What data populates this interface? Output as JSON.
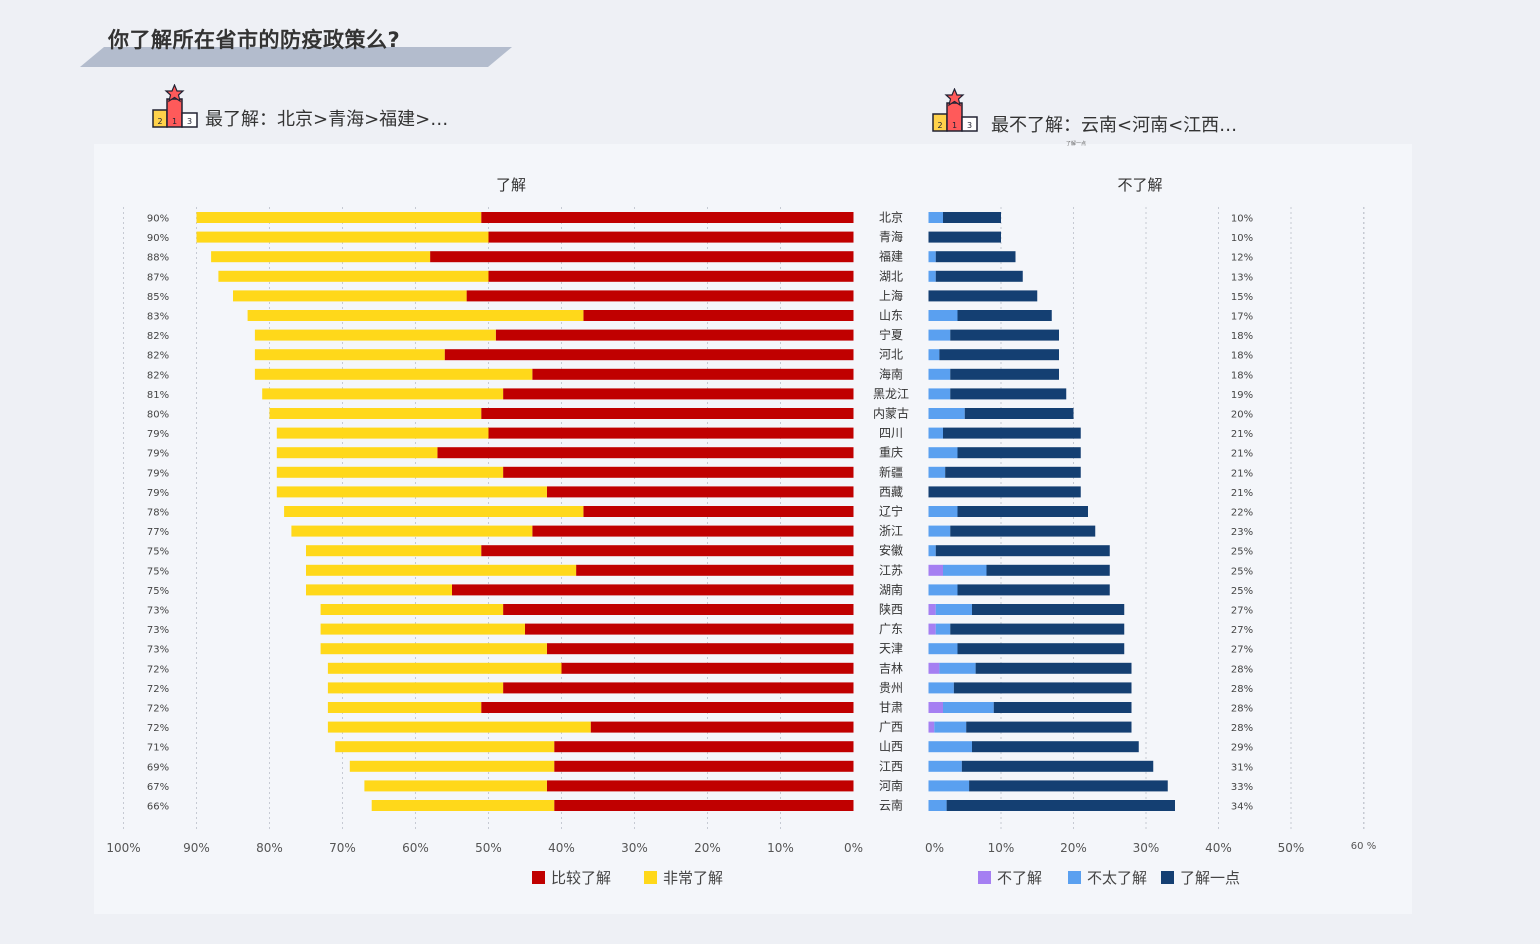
{
  "title": "你了解所在省市的防疫政策么?",
  "rank_left": "最了解：北京>青海>福建>…",
  "rank_right": "最不了解：云南<河南<江西…",
  "tiny_note": "了解一点",
  "podium_labels": [
    "2",
    "1",
    "3"
  ],
  "colors": {
    "bijiao": "#c00000",
    "feichang": "#ffd81a",
    "bu": "#a57ff2",
    "butai": "#5aa0f0",
    "yidian": "#143f72"
  },
  "chart_data": [
    {
      "type": "bar",
      "orientation": "horizontal-reversed",
      "stacked": true,
      "title": "了解",
      "categories": [
        "北京",
        "青海",
        "福建",
        "湖北",
        "上海",
        "山东",
        "宁夏",
        "河北",
        "海南",
        "黑龙江",
        "内蒙古",
        "四川",
        "重庆",
        "新疆",
        "西藏",
        "辽宁",
        "浙江",
        "安徽",
        "江苏",
        "湖南",
        "陕西",
        "广东",
        "天津",
        "吉林",
        "贵州",
        "甘肃",
        "广西",
        "山西",
        "江西",
        "河南",
        "云南"
      ],
      "series": [
        {
          "name": "比较了解",
          "values": [
            51,
            50,
            58,
            50,
            53,
            37,
            49,
            56,
            44,
            48,
            51,
            50,
            57,
            48,
            42,
            37,
            44,
            51,
            38,
            55,
            48,
            45,
            42,
            40,
            48,
            51,
            36,
            41,
            41,
            42,
            41
          ]
        },
        {
          "name": "非常了解",
          "values": [
            39,
            40,
            30,
            37,
            32,
            46,
            33,
            26,
            38,
            33,
            29,
            29,
            22,
            31,
            37,
            41,
            33,
            24,
            37,
            20,
            25,
            28,
            31,
            32,
            24,
            21,
            36,
            30,
            28,
            25,
            25
          ]
        }
      ],
      "totals": [
        "90%",
        "90%",
        "88%",
        "87%",
        "85%",
        "83%",
        "82%",
        "82%",
        "82%",
        "81%",
        "80%",
        "79%",
        "79%",
        "79%",
        "79%",
        "78%",
        "77%",
        "75%",
        "75%",
        "75%",
        "73%",
        "73%",
        "73%",
        "72%",
        "72%",
        "72%",
        "72%",
        "71%",
        "69%",
        "67%",
        "66%"
      ],
      "xticks": [
        "100%",
        "90%",
        "80%",
        "70%",
        "60%",
        "50%",
        "40%",
        "30%",
        "20%",
        "10%",
        "0%"
      ],
      "xlim": [
        100,
        0
      ],
      "grid": true,
      "legend": "bottom"
    },
    {
      "type": "bar",
      "orientation": "horizontal",
      "stacked": true,
      "title": "不了解",
      "categories": [
        "北京",
        "青海",
        "福建",
        "湖北",
        "上海",
        "山东",
        "宁夏",
        "河北",
        "海南",
        "黑龙江",
        "内蒙古",
        "四川",
        "重庆",
        "新疆",
        "西藏",
        "辽宁",
        "浙江",
        "安徽",
        "江苏",
        "湖南",
        "陕西",
        "广东",
        "天津",
        "吉林",
        "贵州",
        "甘肃",
        "广西",
        "山西",
        "江西",
        "河南",
        "云南"
      ],
      "series": [
        {
          "name": "不了解",
          "values": [
            0,
            0,
            0,
            0,
            0,
            0,
            0,
            0,
            0,
            0,
            0,
            0,
            0,
            0,
            0,
            0,
            0,
            0,
            2,
            0,
            1,
            1,
            0,
            1.5,
            0,
            2,
            0.8,
            0,
            0,
            0,
            0
          ]
        },
        {
          "name": "不太了解",
          "values": [
            2,
            0,
            1,
            1,
            0,
            4,
            3,
            1.5,
            3,
            3,
            5,
            2,
            4,
            2.3,
            0,
            4,
            3,
            1,
            6,
            4,
            5,
            2,
            4,
            5,
            3.5,
            7,
            4.4,
            6,
            4.6,
            5.6,
            2.5
          ]
        },
        {
          "name": "了解一点",
          "values": [
            8,
            10,
            11,
            12,
            15,
            13,
            15,
            16.5,
            15,
            16,
            15,
            19,
            17,
            18.7,
            21,
            18,
            20,
            24,
            17,
            21,
            21,
            24,
            23,
            21.5,
            24.5,
            19,
            22.8,
            23,
            26.4,
            27.4,
            31.5
          ]
        }
      ],
      "totals": [
        "10%",
        "10%",
        "12%",
        "13%",
        "15%",
        "17%",
        "18%",
        "18%",
        "18%",
        "19%",
        "20%",
        "21%",
        "21%",
        "21%",
        "21%",
        "22%",
        "23%",
        "25%",
        "25%",
        "25%",
        "27%",
        "27%",
        "27%",
        "28%",
        "28%",
        "28%",
        "28%",
        "29%",
        "31%",
        "33%",
        "34%"
      ],
      "xticks": [
        "0%",
        "10%",
        "20%",
        "30%",
        "40%",
        "50%",
        "60 %"
      ],
      "xlim": [
        0,
        60
      ],
      "grid": true,
      "legend": "bottom"
    }
  ]
}
